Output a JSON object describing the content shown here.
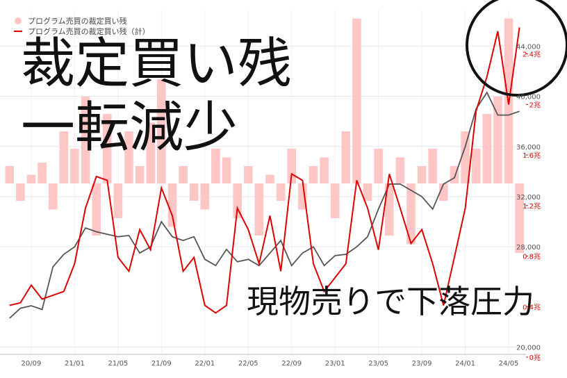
{
  "chart_data": {
    "type": "line",
    "annotations": [
      "裁定買い残",
      "一転減少",
      "現物売りで下落圧力"
    ],
    "x": [
      6,
      7,
      8,
      9,
      10,
      11,
      12,
      13,
      14,
      15,
      16,
      17,
      18,
      19,
      20,
      21,
      22,
      23,
      24,
      25,
      26,
      27,
      28,
      29,
      30,
      31,
      32,
      33,
      34,
      35,
      36,
      37,
      38,
      39,
      40,
      41,
      42,
      43,
      44,
      45,
      46,
      47,
      48,
      49,
      50,
      51,
      52,
      53
    ],
    "xlim": [
      5.12,
      53.6
    ],
    "xticks": [
      {
        "value": 8,
        "label": "20/09"
      },
      {
        "value": 12,
        "label": "21/01"
      },
      {
        "value": 16,
        "label": "21/05"
      },
      {
        "value": 20,
        "label": "21/09"
      },
      {
        "value": 24,
        "label": "22/01"
      },
      {
        "value": 28,
        "label": "22/05"
      },
      {
        "value": 32,
        "label": "22/09"
      },
      {
        "value": 36,
        "label": "23/01"
      },
      {
        "value": 40,
        "label": "23/05"
      },
      {
        "value": 44,
        "label": "23/09"
      },
      {
        "value": 48,
        "label": "24/01"
      },
      {
        "value": 52,
        "label": "24/05"
      }
    ],
    "ylim": [
      19200,
      46900
    ],
    "yticks": [
      {
        "value": 20000,
        "label": "20,000"
      },
      {
        "value": 28000,
        "label": "28,000"
      },
      {
        "value": 32000,
        "label": "32,000"
      },
      {
        "value": 36000,
        "label": "36,000"
      },
      {
        "value": 40000,
        "label": "40,000"
      },
      {
        "value": 44000,
        "label": "44,000"
      }
    ],
    "y2lim": [
      0,
      2.75
    ],
    "y2ticks": [
      {
        "value": 0,
        "label": "0兆"
      },
      {
        "value": 0.4,
        "label": "0.4兆"
      },
      {
        "value": 0.8,
        "label": "0.8兆"
      },
      {
        "value": 1.2,
        "label": "1.2兆"
      },
      {
        "value": 1.6,
        "label": "1.6兆"
      },
      {
        "value": 2,
        "label": "2兆"
      },
      {
        "value": 2.4,
        "label": "2.4兆"
      }
    ],
    "y3lim": [
      -1,
      1
    ],
    "grid": true,
    "series": [
      {
        "name": "プログラム売買の裁定買い残",
        "color": "#ffc6c6",
        "type": "bar",
        "axis": "y3",
        "values": [
          0.1,
          -0.1,
          0.05,
          0.12,
          -0.15,
          0.3,
          0.2,
          0.5,
          -0.3,
          0.4,
          -0.2,
          0.3,
          0.1,
          0.35,
          0.6,
          -0.25,
          0.1,
          -0.1,
          -0.15,
          0.2,
          0.15,
          -0.2,
          0.1,
          -0.3,
          0.05,
          -0.1,
          0.2,
          -0.15,
          0.1,
          0.15,
          -0.2,
          0.3,
          0.95,
          -0.1,
          0.2,
          -0.3,
          0.15,
          -0.35,
          0.1,
          0.2,
          -0.1,
          0.1,
          0.3,
          0.2,
          0.4,
          0.5,
          0.95,
          -0.4
        ]
      },
      {
        "name": "プログラム売買の裁定買い残（計）",
        "color": "#e00000",
        "axis": "y2",
        "values": [
          0.41,
          0.43,
          0.57,
          0.46,
          0.49,
          0.52,
          0.74,
          1.18,
          1.43,
          1.4,
          0.79,
          0.68,
          1.01,
          0.85,
          1.34,
          1.12,
          0.68,
          0.79,
          0.41,
          0.35,
          0.41,
          1.18,
          1.01,
          0.74,
          1.12,
          0.68,
          1.45,
          1.4,
          0.74,
          0.52,
          0.63,
          0.74,
          1.4,
          1.18,
          0.85,
          1.45,
          1.18,
          0.9,
          1.01,
          0.74,
          0.41,
          0.79,
          1.18,
          1.95,
          2.22,
          2.58,
          2,
          2.61
        ]
      },
      {
        "color": "#555555",
        "values": [
          22300,
          23100,
          23300,
          23000,
          26400,
          27400,
          28000,
          29500,
          29200,
          29000,
          28800,
          28900,
          27500,
          28000,
          30000,
          28800,
          28500,
          28800,
          27000,
          26500,
          27800,
          26800,
          27000,
          26500,
          27500,
          28500,
          26500,
          27500,
          28000,
          26500,
          27300,
          27400,
          28000,
          28800,
          31000,
          33000,
          33000,
          32500,
          32000,
          31000,
          33000,
          33500,
          36000,
          39000,
          40300,
          38500,
          38500,
          38800
        ]
      }
    ]
  }
}
